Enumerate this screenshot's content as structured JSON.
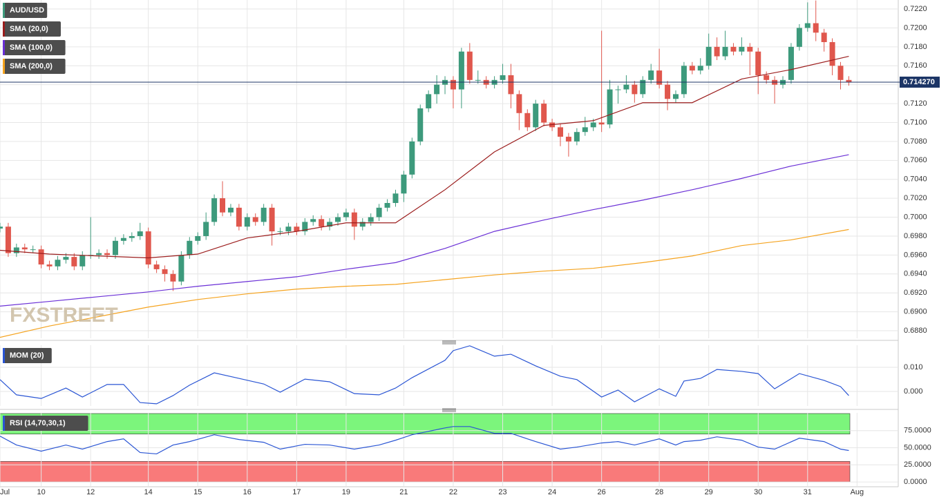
{
  "chart_data": [
    {
      "type": "candlestick",
      "name": "AUD/USD",
      "up_color": "#3d9a7c",
      "down_color": "#e0574d",
      "watermark": "FXSTREET",
      "grid": true,
      "x": [
        0,
        1,
        2,
        3,
        4,
        5,
        6,
        7,
        8,
        9,
        10,
        11,
        12,
        13,
        14,
        15,
        16,
        17,
        18,
        19,
        20,
        21,
        22,
        23,
        24,
        25,
        26,
        27,
        28,
        29,
        30,
        31,
        32,
        33,
        34,
        35,
        36,
        37,
        38,
        39,
        40,
        41,
        42,
        43,
        44,
        45,
        46,
        47,
        48,
        49,
        50,
        51,
        52,
        53,
        54,
        55,
        56,
        57,
        58,
        59,
        60,
        61,
        62,
        63,
        64,
        65,
        66,
        67,
        68,
        69,
        70,
        71,
        72,
        73,
        74,
        75,
        76,
        77,
        78,
        79,
        80,
        81,
        82,
        83,
        84,
        85,
        86,
        87,
        88,
        89,
        90,
        91,
        92,
        93,
        94,
        95,
        96,
        97,
        98,
        99,
        100,
        101,
        102,
        103
      ],
      "open": [
        0.6988,
        0.699,
        0.6962,
        0.6968,
        0.6966,
        0.6966,
        0.695,
        0.6948,
        0.6955,
        0.6958,
        0.6948,
        0.696,
        0.696,
        0.6962,
        0.696,
        0.6975,
        0.6978,
        0.698,
        0.6985,
        0.695,
        0.6945,
        0.694,
        0.6932,
        0.696,
        0.6975,
        0.698,
        0.6995,
        0.702,
        0.7005,
        0.701,
        0.699,
        0.7,
        0.6995,
        0.701,
        0.6985,
        0.6985,
        0.699,
        0.6985,
        0.6995,
        0.6998,
        0.699,
        0.6995,
        0.7,
        0.7005,
        0.699,
        0.6995,
        0.7,
        0.701,
        0.7015,
        0.7025,
        0.7045,
        0.708,
        0.7115,
        0.713,
        0.714,
        0.7145,
        0.7135,
        0.7175,
        0.7145,
        0.7145,
        0.714,
        0.7145,
        0.715,
        0.713,
        0.711,
        0.7095,
        0.712,
        0.71,
        0.7095,
        0.7085,
        0.708,
        0.709,
        0.7095,
        0.71,
        0.7098,
        0.7135,
        0.7135,
        0.714,
        0.713,
        0.7145,
        0.7155,
        0.714,
        0.7125,
        0.713,
        0.716,
        0.7155,
        0.716,
        0.718,
        0.717,
        0.718,
        0.7175,
        0.718,
        0.7175,
        0.715,
        0.7145,
        0.714,
        0.7145,
        0.718,
        0.72,
        0.7205,
        0.7195,
        0.7185,
        0.716,
        0.7145
      ],
      "high": [
        0.6994,
        0.6994,
        0.6972,
        0.6972,
        0.697,
        0.697,
        0.6954,
        0.6959,
        0.6962,
        0.6962,
        0.6964,
        0.7,
        0.6966,
        0.6966,
        0.6979,
        0.6982,
        0.6984,
        0.6994,
        0.6989,
        0.6954,
        0.6949,
        0.6944,
        0.6964,
        0.6979,
        0.6984,
        0.7005,
        0.7024,
        0.7038,
        0.7014,
        0.7014,
        0.7004,
        0.7004,
        0.7014,
        0.7014,
        0.6989,
        0.6994,
        0.6994,
        0.6999,
        0.7002,
        0.7002,
        0.6999,
        0.7004,
        0.7009,
        0.7009,
        0.6999,
        0.7004,
        0.7014,
        0.7019,
        0.7029,
        0.7049,
        0.7084,
        0.7119,
        0.7134,
        0.715,
        0.7149,
        0.7149,
        0.7179,
        0.7184,
        0.7155,
        0.7149,
        0.7149,
        0.7162,
        0.7162,
        0.7134,
        0.7114,
        0.7124,
        0.7124,
        0.7104,
        0.7099,
        0.7089,
        0.7094,
        0.7106,
        0.7104,
        0.7197,
        0.7145,
        0.7139,
        0.715,
        0.7144,
        0.7149,
        0.7162,
        0.7178,
        0.7144,
        0.7134,
        0.7164,
        0.7164,
        0.7168,
        0.7194,
        0.719,
        0.7197,
        0.7184,
        0.719,
        0.7184,
        0.7179,
        0.7154,
        0.7149,
        0.7149,
        0.7184,
        0.7204,
        0.7227,
        0.7229,
        0.7199,
        0.7189,
        0.7164,
        0.7149
      ],
      "low": [
        0.6984,
        0.6958,
        0.6958,
        0.6962,
        0.6962,
        0.6946,
        0.6944,
        0.6944,
        0.6951,
        0.6944,
        0.6944,
        0.6956,
        0.6956,
        0.6956,
        0.6956,
        0.6971,
        0.6974,
        0.6976,
        0.6946,
        0.6941,
        0.6932,
        0.6922,
        0.6928,
        0.6956,
        0.6971,
        0.6976,
        0.6991,
        0.7001,
        0.7001,
        0.6986,
        0.6986,
        0.6991,
        0.6991,
        0.697,
        0.6981,
        0.6981,
        0.6981,
        0.6981,
        0.6991,
        0.6986,
        0.6986,
        0.6991,
        0.6996,
        0.6976,
        0.6986,
        0.6991,
        0.6996,
        0.7006,
        0.7011,
        0.7016,
        0.7041,
        0.7076,
        0.7111,
        0.712,
        0.713,
        0.7115,
        0.7115,
        0.7141,
        0.7141,
        0.7136,
        0.7136,
        0.7141,
        0.7115,
        0.7092,
        0.7091,
        0.7091,
        0.7096,
        0.7091,
        0.7075,
        0.7064,
        0.7076,
        0.7086,
        0.7091,
        0.709,
        0.7094,
        0.712,
        0.7131,
        0.7121,
        0.7126,
        0.7141,
        0.7136,
        0.7113,
        0.7121,
        0.7126,
        0.7151,
        0.7151,
        0.7156,
        0.7166,
        0.7166,
        0.7171,
        0.7171,
        0.715,
        0.713,
        0.7141,
        0.712,
        0.7136,
        0.7141,
        0.7176,
        0.7196,
        0.7186,
        0.7175,
        0.715,
        0.7135,
        0.7139
      ],
      "close": [
        0.699,
        0.6962,
        0.6968,
        0.6966,
        0.6966,
        0.695,
        0.6948,
        0.6955,
        0.6958,
        0.6948,
        0.696,
        0.696,
        0.6962,
        0.696,
        0.6975,
        0.6978,
        0.698,
        0.6985,
        0.695,
        0.6945,
        0.694,
        0.6932,
        0.696,
        0.6975,
        0.698,
        0.6995,
        0.702,
        0.7005,
        0.701,
        0.699,
        0.7,
        0.6995,
        0.701,
        0.6985,
        0.6985,
        0.699,
        0.6985,
        0.6995,
        0.6998,
        0.699,
        0.6995,
        0.7,
        0.7005,
        0.699,
        0.6995,
        0.7,
        0.701,
        0.7015,
        0.7025,
        0.7045,
        0.708,
        0.7115,
        0.713,
        0.714,
        0.7145,
        0.7135,
        0.7175,
        0.7145,
        0.7145,
        0.714,
        0.7145,
        0.715,
        0.713,
        0.711,
        0.7095,
        0.712,
        0.71,
        0.7095,
        0.7085,
        0.708,
        0.709,
        0.7095,
        0.71,
        0.7098,
        0.7135,
        0.7135,
        0.714,
        0.713,
        0.7145,
        0.7155,
        0.714,
        0.7125,
        0.713,
        0.716,
        0.7155,
        0.716,
        0.718,
        0.717,
        0.718,
        0.7175,
        0.718,
        0.7175,
        0.715,
        0.7145,
        0.714,
        0.7145,
        0.718,
        0.72,
        0.7205,
        0.7195,
        0.7185,
        0.716,
        0.7145,
        0.7143
      ],
      "series": [
        {
          "name": "SMA (20,0)",
          "color": "#9b1c1c",
          "x": [
            0,
            6,
            12,
            18,
            24,
            30,
            36,
            42,
            48,
            54,
            60,
            66,
            72,
            78,
            84,
            90,
            96,
            103
          ],
          "values": [
            0.6965,
            0.6961,
            0.6959,
            0.6957,
            0.6961,
            0.6978,
            0.6985,
            0.6994,
            0.6994,
            0.7029,
            0.7069,
            0.7097,
            0.7102,
            0.7121,
            0.7121,
            0.7146,
            0.7156,
            0.717
          ]
        },
        {
          "name": "SMA (100,0)",
          "color": "#6a2fd6",
          "x": [
            0,
            6,
            12,
            18,
            24,
            30,
            36,
            42,
            48,
            54,
            60,
            66,
            72,
            78,
            84,
            90,
            96,
            103
          ],
          "values": [
            0.6906,
            0.6911,
            0.6916,
            0.6921,
            0.6927,
            0.6932,
            0.6937,
            0.6945,
            0.6952,
            0.6967,
            0.6985,
            0.6997,
            0.7008,
            0.7018,
            0.7029,
            0.7041,
            0.7054,
            0.7066
          ]
        },
        {
          "name": "SMA (200,0)",
          "color": "#f5a31e",
          "x": [
            0,
            6,
            12,
            18,
            24,
            30,
            36,
            42,
            48,
            54,
            60,
            66,
            72,
            78,
            84,
            90,
            96,
            103
          ],
          "values": [
            0.6873,
            0.6885,
            0.6895,
            0.6905,
            0.6913,
            0.6919,
            0.6924,
            0.6927,
            0.6929,
            0.6934,
            0.6939,
            0.6943,
            0.6946,
            0.6952,
            0.6959,
            0.697,
            0.6976,
            0.6987
          ]
        }
      ],
      "last_price": {
        "value": 0.71427,
        "label": "0.714270"
      },
      "xlim": [
        0,
        109
      ],
      "xticks": [
        {
          "value": 0,
          "label": "Jul"
        },
        {
          "value": 5,
          "label": "10"
        },
        {
          "value": 11,
          "label": "12"
        },
        {
          "value": 18,
          "label": "14"
        },
        {
          "value": 24,
          "label": "15"
        },
        {
          "value": 30,
          "label": "16"
        },
        {
          "value": 36,
          "label": "17"
        },
        {
          "value": 42,
          "label": "19"
        },
        {
          "value": 49,
          "label": "21"
        },
        {
          "value": 55,
          "label": "22"
        },
        {
          "value": 61,
          "label": "23"
        },
        {
          "value": 67,
          "label": "24"
        },
        {
          "value": 73,
          "label": "26"
        },
        {
          "value": 80,
          "label": "28"
        },
        {
          "value": 86,
          "label": "29"
        },
        {
          "value": 92,
          "label": "30"
        },
        {
          "value": 98,
          "label": "31"
        },
        {
          "value": 104,
          "label": "Aug"
        }
      ],
      "ylim": [
        0.6872,
        0.72295
      ],
      "yticks": [
        {
          "value": 0.688,
          "label": "0.6880"
        },
        {
          "value": 0.69,
          "label": "0.6900"
        },
        {
          "value": 0.692,
          "label": "0.6920"
        },
        {
          "value": 0.694,
          "label": "0.6940"
        },
        {
          "value": 0.696,
          "label": "0.6960"
        },
        {
          "value": 0.698,
          "label": "0.6980"
        },
        {
          "value": 0.7,
          "label": "0.7000"
        },
        {
          "value": 0.702,
          "label": "0.7020"
        },
        {
          "value": 0.704,
          "label": "0.7040"
        },
        {
          "value": 0.706,
          "label": "0.7060"
        },
        {
          "value": 0.708,
          "label": "0.7080"
        },
        {
          "value": 0.71,
          "label": "0.7100"
        },
        {
          "value": 0.712,
          "label": "0.7120"
        },
        {
          "value": 0.714,
          "label": "0.7140"
        },
        {
          "value": 0.716,
          "label": "0.7160"
        },
        {
          "value": 0.718,
          "label": "0.7180"
        },
        {
          "value": 0.72,
          "label": "0.7200"
        },
        {
          "value": 0.722,
          "label": "0.7220"
        }
      ]
    },
    {
      "type": "line",
      "xlim": [
        0,
        109
      ],
      "ylim": [
        -0.006,
        0.01914
      ],
      "yticks": [
        {
          "value": 0,
          "label": "0.000"
        },
        {
          "value": 0.01,
          "label": "0.010"
        }
      ],
      "series": [
        {
          "name": "MOM (20)",
          "color": "#2a55d4",
          "x": [
            0,
            2,
            5,
            8,
            10,
            13,
            15,
            17,
            19,
            21,
            23,
            26,
            29,
            32,
            34,
            37,
            40,
            43,
            46,
            48,
            50,
            54,
            55,
            57,
            60,
            62,
            65,
            68,
            70,
            73,
            75,
            77,
            80,
            82,
            83,
            85,
            87,
            90,
            92,
            94,
            97,
            100,
            102,
            103
          ],
          "values": [
            0.0049,
            -0.0014,
            -0.0029,
            0.0014,
            -0.0023,
            0.0029,
            0.0029,
            -0.0046,
            -0.0051,
            -0.0017,
            0.0026,
            0.0077,
            0.0054,
            0.0031,
            -0.0003,
            0.0051,
            0.004,
            -0.0009,
            -0.0014,
            0.0014,
            0.0057,
            0.0129,
            0.0169,
            0.0189,
            0.0146,
            0.0154,
            0.0106,
            0.0063,
            0.0049,
            -0.0023,
            0.0006,
            -0.0043,
            0.0011,
            -0.002,
            0.0043,
            0.0054,
            0.0091,
            0.0083,
            0.0074,
            0.0011,
            0.0074,
            0.0046,
            0.002,
            -0.0017
          ]
        }
      ]
    },
    {
      "type": "line",
      "xlim": [
        0,
        109
      ],
      "ylim": [
        -7,
        101
      ],
      "overbought_zone": [
        70,
        100
      ],
      "oversold_zone": [
        0,
        30
      ],
      "overbought_color": "#7cf57c",
      "oversold_color": "#f97a7a",
      "yticks": [
        {
          "value": 0,
          "label": "0.0000"
        },
        {
          "value": 25,
          "label": "25.0000"
        },
        {
          "value": 50,
          "label": "50.0000"
        },
        {
          "value": 75,
          "label": "75.0000"
        }
      ],
      "series": [
        {
          "name": "RSI (14,70,30,1)",
          "color": "#2a55d4",
          "x": [
            0,
            2,
            5,
            8,
            10,
            13,
            15,
            17,
            19,
            21,
            23,
            26,
            29,
            32,
            34,
            37,
            40,
            43,
            46,
            48,
            50,
            54,
            55,
            57,
            60,
            62,
            65,
            68,
            70,
            73,
            75,
            77,
            80,
            82,
            83,
            85,
            87,
            90,
            92,
            94,
            97,
            100,
            102,
            103
          ],
          "values": [
            67,
            54,
            45,
            54,
            48,
            59,
            63,
            43,
            41,
            54,
            59,
            69,
            62,
            58,
            48,
            55,
            54,
            48,
            54,
            61,
            69,
            79,
            81,
            81,
            71,
            71,
            59,
            48,
            51,
            57,
            59,
            54,
            63,
            54,
            59,
            61,
            66,
            61,
            51,
            48,
            64,
            59,
            48,
            46
          ]
        }
      ]
    }
  ]
}
